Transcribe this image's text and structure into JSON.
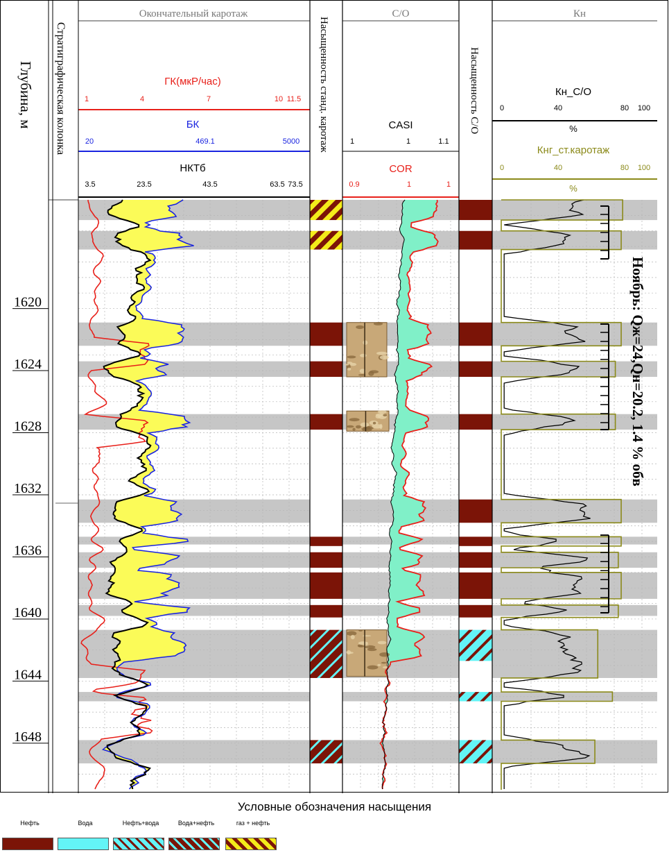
{
  "chart_data": {
    "type": "well-log",
    "depth_axis": {
      "title": "Глубина, м",
      "range": [
        1613,
        1651
      ],
      "ticks": [
        1620,
        1624,
        1628,
        1632,
        1636,
        1640,
        1644,
        1648
      ]
    },
    "tracks": {
      "strat": {
        "title": "Стратиграфическая колонка"
      },
      "log": {
        "title": "Окончательный каротаж",
        "curves": [
          {
            "name": "ГК(мкР/час)",
            "color": "#e8201a",
            "scale": [
              1,
              11.5
            ],
            "tick_labels": [
              "1",
              "4",
              "7",
              "10",
              "11.5"
            ]
          },
          {
            "name": "БК",
            "color": "#1a24e0",
            "scale": [
              20,
              5000
            ],
            "tick_labels": [
              "20",
              "469.1",
              "5000"
            ]
          },
          {
            "name": "НКТб",
            "color": "#000000",
            "scale": [
              3.5,
              73.5
            ],
            "tick_labels": [
              "3.5",
              "23.5",
              "43.5",
              "63.5",
              "73.5"
            ]
          }
        ]
      },
      "sat_std": {
        "title": "Насыщенность станд. каротаж"
      },
      "co": {
        "title": "C/O",
        "curves": [
          {
            "name": "CASI",
            "color": "#000000",
            "tick_labels": [
              "1",
              "1",
              "1.1"
            ]
          },
          {
            "name": "COR",
            "color": "#e8201a",
            "tick_labels": [
              "0.9",
              "1",
              "1"
            ]
          }
        ]
      },
      "sat_co": {
        "title": "Насыщенность C/O"
      },
      "kn": {
        "title": "Кн",
        "curves": [
          {
            "name": "Кн_C/O",
            "color": "#000000",
            "scale": [
              0,
              100
            ],
            "tick_labels": [
              "0",
              "40",
              "80",
              "100"
            ],
            "unit": "%"
          },
          {
            "name": "Кнг_ст.каротаж",
            "color": "#8b8a1a",
            "scale": [
              0,
              100
            ],
            "tick_labels": [
              "0",
              "40",
              "80",
              "100"
            ],
            "unit": "%"
          }
        ]
      }
    },
    "shaded_intervals_m": [
      [
        1613.0,
        1614.3
      ],
      [
        1615.0,
        1616.2
      ],
      [
        1620.9,
        1622.4
      ],
      [
        1623.4,
        1624.4
      ],
      [
        1626.8,
        1627.8
      ],
      [
        1632.3,
        1633.8
      ],
      [
        1634.7,
        1635.2
      ],
      [
        1635.7,
        1636.7
      ],
      [
        1637.0,
        1638.7
      ],
      [
        1639.1,
        1639.8
      ],
      [
        1640.7,
        1643.8
      ],
      [
        1644.7,
        1645.3
      ],
      [
        1647.8,
        1649.3
      ]
    ],
    "saturation_std": [
      {
        "top": 1613.0,
        "base": 1614.3,
        "type": "gas_oil"
      },
      {
        "top": 1615.0,
        "base": 1616.2,
        "type": "gas_oil"
      },
      {
        "top": 1620.9,
        "base": 1622.4,
        "type": "oil"
      },
      {
        "top": 1623.4,
        "base": 1624.4,
        "type": "oil"
      },
      {
        "top": 1626.8,
        "base": 1627.8,
        "type": "oil"
      },
      {
        "top": 1634.7,
        "base": 1635.3,
        "type": "oil"
      },
      {
        "top": 1635.7,
        "base": 1636.7,
        "type": "oil"
      },
      {
        "top": 1637.0,
        "base": 1638.7,
        "type": "oil"
      },
      {
        "top": 1639.1,
        "base": 1639.9,
        "type": "oil"
      },
      {
        "top": 1640.7,
        "base": 1643.8,
        "type": "water_oil"
      },
      {
        "top": 1647.8,
        "base": 1649.3,
        "type": "water_oil"
      }
    ],
    "saturation_co": [
      {
        "top": 1613.0,
        "base": 1614.3,
        "type": "oil"
      },
      {
        "top": 1615.0,
        "base": 1616.2,
        "type": "oil"
      },
      {
        "top": 1620.9,
        "base": 1622.4,
        "type": "oil"
      },
      {
        "top": 1623.4,
        "base": 1624.4,
        "type": "oil"
      },
      {
        "top": 1626.8,
        "base": 1627.8,
        "type": "oil"
      },
      {
        "top": 1632.3,
        "base": 1633.8,
        "type": "oil"
      },
      {
        "top": 1634.7,
        "base": 1635.3,
        "type": "oil"
      },
      {
        "top": 1635.7,
        "base": 1636.7,
        "type": "oil"
      },
      {
        "top": 1637.0,
        "base": 1638.7,
        "type": "oil"
      },
      {
        "top": 1639.1,
        "base": 1639.9,
        "type": "oil"
      },
      {
        "top": 1640.7,
        "base": 1642.7,
        "type": "oil_water"
      },
      {
        "top": 1644.7,
        "base": 1645.3,
        "type": "oil_water"
      },
      {
        "top": 1647.8,
        "base": 1649.3,
        "type": "oil_water"
      }
    ],
    "core_photos": [
      {
        "top": 1620.9,
        "base": 1624.4
      },
      {
        "top": 1626.6,
        "base": 1627.9
      },
      {
        "top": 1640.7,
        "base": 1643.7
      }
    ],
    "ngk_blocks": [
      {
        "top": 1613.0,
        "base": 1614.3,
        "value": 83
      },
      {
        "top": 1615.0,
        "base": 1616.2,
        "value": 82
      },
      {
        "top": 1620.9,
        "base": 1622.4,
        "value": 82
      },
      {
        "top": 1623.4,
        "base": 1624.4,
        "value": 78
      },
      {
        "top": 1626.8,
        "base": 1627.8,
        "value": 78
      },
      {
        "top": 1632.3,
        "base": 1633.8,
        "value": 82
      },
      {
        "top": 1634.7,
        "base": 1635.3,
        "value": 82
      },
      {
        "top": 1635.7,
        "base": 1636.7,
        "value": 80
      },
      {
        "top": 1637.0,
        "base": 1638.7,
        "value": 82
      },
      {
        "top": 1639.1,
        "base": 1639.9,
        "value": 80
      },
      {
        "top": 1640.7,
        "base": 1643.8,
        "value": 66
      },
      {
        "top": 1644.7,
        "base": 1645.3,
        "value": 76
      },
      {
        "top": 1647.8,
        "base": 1649.3,
        "value": 64
      }
    ],
    "perforation_intervals_m": [
      [
        1613.4,
        1616.8
      ],
      [
        1621.0,
        1627.8
      ],
      [
        1634.6,
        1639.6
      ]
    ],
    "annotation": "Ноябрь: Qж=24,Qн=20.2, 1.4 % обв",
    "legend": {
      "title": "Условные обозначения насыщения",
      "items": [
        {
          "label": "Нефть",
          "type": "oil"
        },
        {
          "label": "Вода",
          "type": "water"
        },
        {
          "label": "Нефть+вода",
          "type": "oil_water"
        },
        {
          "label": "Вода+нефть",
          "type": "water_oil"
        },
        {
          "label": "газ + нефть",
          "type": "gas_oil"
        }
      ]
    },
    "colors": {
      "shade": "#c6c6c6",
      "oil": "#7b1407",
      "water": "#63f4f6",
      "gas": "#f4ec1a",
      "yellow_fill": "#fbfb58",
      "cyan_fill": "#80f0c8",
      "ngk": "#8b8a1a"
    }
  }
}
